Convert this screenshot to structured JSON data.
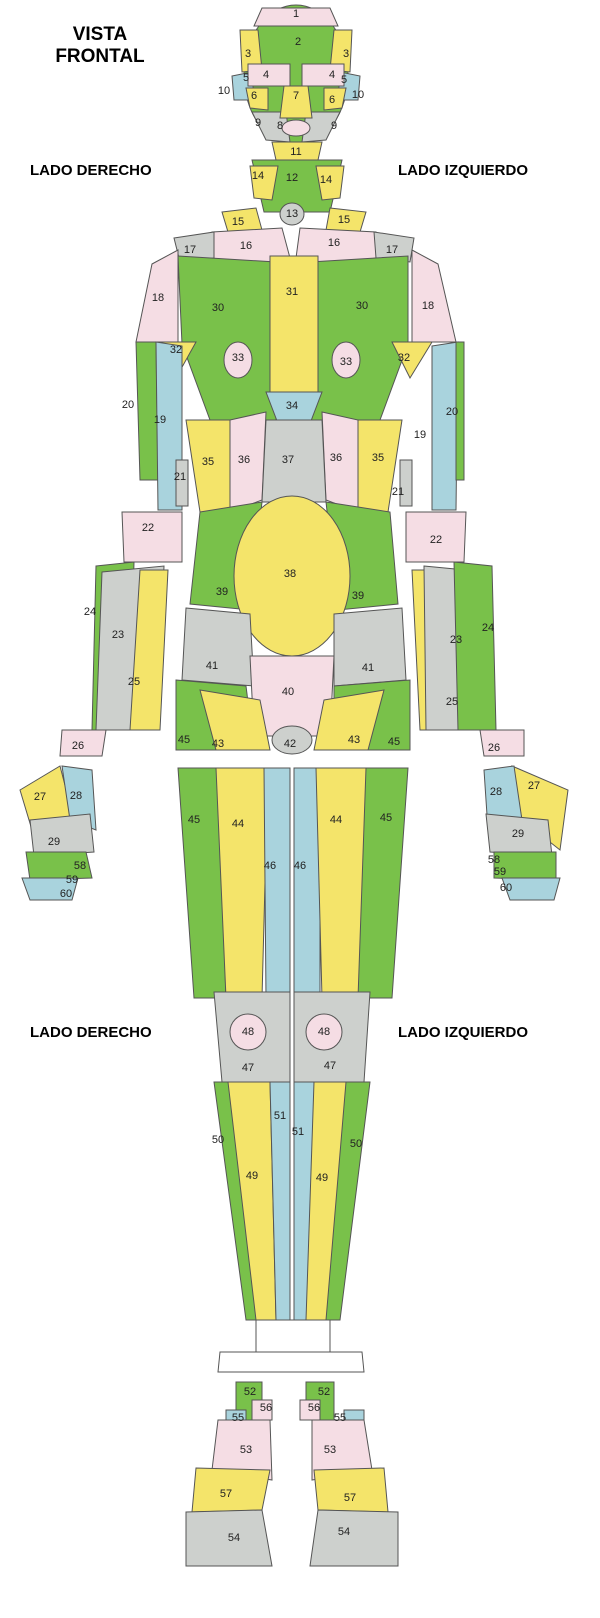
{
  "title_line1": "VISTA",
  "title_line2": "FRONTAL",
  "labels": {
    "right_upper": "LADO DERECHO",
    "left_upper": "LADO IZQUIERDO",
    "right_lower": "LADO DERECHO",
    "left_lower": "LADO IZQUIERDO"
  },
  "colors": {
    "green": "#79c14a",
    "yellow": "#f4e46a",
    "pink": "#f5dde4",
    "blue": "#a9d3dd",
    "gray": "#cdd0cd",
    "white": "#ffffff"
  },
  "zone_numbers": [
    "1",
    "2",
    "3",
    "4",
    "5",
    "6",
    "7",
    "8",
    "9",
    "10",
    "11",
    "12",
    "13",
    "14",
    "15",
    "16",
    "17",
    "18",
    "19",
    "20",
    "21",
    "22",
    "23",
    "24",
    "25",
    "26",
    "27",
    "28",
    "29",
    "30",
    "31",
    "32",
    "33",
    "34",
    "35",
    "36",
    "37",
    "38",
    "39",
    "40",
    "41",
    "42",
    "43",
    "44",
    "45",
    "46",
    "47",
    "48",
    "49",
    "50",
    "51",
    "52",
    "53",
    "54",
    "55",
    "56",
    "57",
    "58",
    "59",
    "60"
  ]
}
